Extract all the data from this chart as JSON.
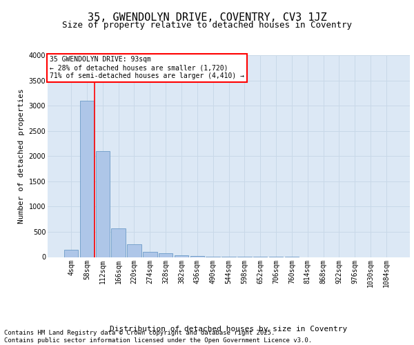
{
  "title": "35, GWENDOLYN DRIVE, COVENTRY, CV3 1JZ",
  "subtitle": "Size of property relative to detached houses in Coventry",
  "xlabel": "Distribution of detached houses by size in Coventry",
  "ylabel": "Number of detached properties",
  "categories": [
    "4sqm",
    "58sqm",
    "112sqm",
    "166sqm",
    "220sqm",
    "274sqm",
    "328sqm",
    "382sqm",
    "436sqm",
    "490sqm",
    "544sqm",
    "598sqm",
    "652sqm",
    "706sqm",
    "760sqm",
    "814sqm",
    "868sqm",
    "922sqm",
    "976sqm",
    "1030sqm",
    "1084sqm"
  ],
  "values": [
    150,
    3100,
    2100,
    570,
    250,
    100,
    75,
    30,
    15,
    5,
    3,
    2,
    1,
    1,
    1,
    0,
    0,
    0,
    0,
    0,
    0
  ],
  "bar_color": "#aec6e8",
  "bar_edge_color": "#5a8fc0",
  "grid_color": "#c8d8e8",
  "background_color": "#dce8f5",
  "vline_color": "red",
  "annotation_box_text": "35 GWENDOLYN DRIVE: 93sqm\n← 28% of detached houses are smaller (1,720)\n71% of semi-detached houses are larger (4,410) →",
  "ylim": [
    0,
    4000
  ],
  "yticks": [
    0,
    500,
    1000,
    1500,
    2000,
    2500,
    3000,
    3500,
    4000
  ],
  "footer_line1": "Contains HM Land Registry data © Crown copyright and database right 2025.",
  "footer_line2": "Contains public sector information licensed under the Open Government Licence v3.0.",
  "title_fontsize": 11,
  "subtitle_fontsize": 9,
  "tick_fontsize": 7,
  "label_fontsize": 8,
  "footer_fontsize": 6.5,
  "annot_fontsize": 7
}
